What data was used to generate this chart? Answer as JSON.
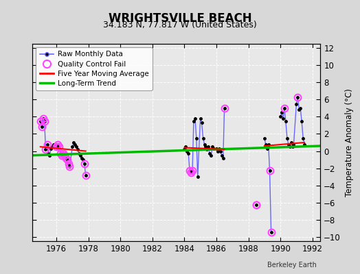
{
  "title": "WRIGHTSVILLE BEACH",
  "subtitle": "34.183 N, 77.817 W (United States)",
  "ylabel": "Temperature Anomaly (°C)",
  "credit": "Berkeley Earth",
  "xlim": [
    1974.5,
    1992.5
  ],
  "ylim": [
    -10.5,
    12.5
  ],
  "yticks": [
    -10,
    -8,
    -6,
    -4,
    -2,
    0,
    2,
    4,
    6,
    8,
    10,
    12
  ],
  "xticks": [
    1976,
    1978,
    1980,
    1982,
    1984,
    1986,
    1988,
    1990,
    1992
  ],
  "bg_color": "#d8d8d8",
  "plot_bg": "#e8e8e8",
  "raw_data": [
    [
      1975.0,
      3.5
    ],
    [
      1975.08,
      2.8
    ],
    [
      1975.17,
      3.8
    ],
    [
      1975.25,
      3.5
    ],
    [
      1975.33,
      0.2
    ],
    [
      1975.42,
      0.8
    ],
    [
      1975.5,
      -0.3
    ],
    [
      1975.58,
      -0.5
    ],
    [
      1975.67,
      0.3
    ],
    [
      1975.75,
      0.5
    ],
    [
      1975.83,
      0.8
    ],
    [
      1976.0,
      0.5
    ],
    [
      1976.08,
      0.8
    ],
    [
      1976.17,
      0.5
    ],
    [
      1976.25,
      -0.3
    ],
    [
      1976.33,
      -0.5
    ],
    [
      1976.42,
      -0.3
    ],
    [
      1976.5,
      -0.5
    ],
    [
      1976.58,
      -0.8
    ],
    [
      1976.67,
      -1.0
    ],
    [
      1976.75,
      -1.5
    ],
    [
      1976.83,
      -1.8
    ],
    [
      1977.0,
      0.5
    ],
    [
      1977.08,
      1.0
    ],
    [
      1977.17,
      0.8
    ],
    [
      1977.25,
      0.5
    ],
    [
      1977.33,
      0.2
    ],
    [
      1977.42,
      -0.3
    ],
    [
      1977.5,
      -0.5
    ],
    [
      1977.58,
      -0.8
    ],
    [
      1977.67,
      -1.0
    ],
    [
      1977.75,
      -1.5
    ],
    [
      1977.83,
      -2.8
    ],
    [
      1984.0,
      0.2
    ],
    [
      1984.08,
      0.5
    ],
    [
      1984.17,
      0.0
    ],
    [
      1984.25,
      -0.3
    ],
    [
      1984.33,
      -2.3
    ],
    [
      1984.42,
      -2.5
    ],
    [
      1984.5,
      -2.3
    ],
    [
      1984.58,
      3.5
    ],
    [
      1984.67,
      3.8
    ],
    [
      1984.75,
      1.5
    ],
    [
      1984.83,
      -3.0
    ],
    [
      1985.0,
      3.8
    ],
    [
      1985.08,
      3.3
    ],
    [
      1985.17,
      1.5
    ],
    [
      1985.25,
      0.8
    ],
    [
      1985.33,
      0.5
    ],
    [
      1985.42,
      0.2
    ],
    [
      1985.5,
      0.5
    ],
    [
      1985.58,
      -0.3
    ],
    [
      1985.67,
      -0.5
    ],
    [
      1985.75,
      0.5
    ],
    [
      1985.83,
      0.3
    ],
    [
      1986.0,
      0.3
    ],
    [
      1986.08,
      0.0
    ],
    [
      1986.17,
      0.3
    ],
    [
      1986.25,
      0.0
    ],
    [
      1986.33,
      -0.5
    ],
    [
      1986.42,
      -0.8
    ],
    [
      1986.5,
      5.0
    ],
    [
      1989.0,
      1.5
    ],
    [
      1989.08,
      0.8
    ],
    [
      1989.17,
      0.3
    ],
    [
      1989.25,
      0.8
    ],
    [
      1989.33,
      -2.3
    ],
    [
      1989.42,
      -9.5
    ],
    [
      1990.0,
      4.0
    ],
    [
      1990.08,
      4.5
    ],
    [
      1990.17,
      3.8
    ],
    [
      1990.25,
      5.0
    ],
    [
      1990.33,
      3.5
    ],
    [
      1990.42,
      1.5
    ],
    [
      1990.5,
      0.8
    ],
    [
      1990.58,
      0.5
    ],
    [
      1990.67,
      1.0
    ],
    [
      1990.75,
      0.5
    ],
    [
      1990.83,
      0.8
    ],
    [
      1991.0,
      5.5
    ],
    [
      1991.08,
      6.3
    ],
    [
      1991.17,
      4.8
    ],
    [
      1991.25,
      5.0
    ],
    [
      1991.33,
      3.5
    ],
    [
      1991.42,
      1.5
    ],
    [
      1991.5,
      0.8
    ]
  ],
  "qc_fail_x": [
    1975.0,
    1975.08,
    1975.17,
    1975.25,
    1975.33,
    1975.42,
    1976.0,
    1976.08,
    1976.17,
    1976.25,
    1976.33,
    1976.42,
    1976.5,
    1976.58,
    1976.67,
    1976.75,
    1976.83,
    1977.75,
    1977.83,
    1984.33,
    1984.42,
    1984.5,
    1986.5,
    1988.5,
    1989.33,
    1989.42,
    1990.25,
    1991.08
  ],
  "qc_fail_y": [
    3.5,
    2.8,
    3.8,
    3.5,
    0.2,
    0.8,
    0.5,
    0.8,
    0.5,
    -0.3,
    -0.5,
    -0.3,
    -0.5,
    -0.8,
    -1.0,
    -1.5,
    -1.8,
    -1.5,
    -2.8,
    -2.3,
    -2.5,
    -2.3,
    5.0,
    -6.3,
    -2.3,
    -9.5,
    5.0,
    6.3
  ],
  "standalone_qc_x": [
    1988.5
  ],
  "standalone_qc_y": [
    -6.3
  ],
  "moving_avg_segments": [
    [
      [
        1975.0,
        1977.83
      ],
      [
        0.5,
        0.0
      ]
    ],
    [
      [
        1984.0,
        1986.5
      ],
      [
        0.4,
        0.2
      ]
    ],
    [
      [
        1989.0,
        1991.5
      ],
      [
        0.6,
        1.0
      ]
    ]
  ],
  "trend_x": [
    1974.5,
    1992.5
  ],
  "trend_y": [
    -0.5,
    0.6
  ],
  "line_color": "#6666ff",
  "dot_color": "#000000",
  "qc_color": "#ff44ff",
  "ma_color": "#ff0000",
  "trend_color": "#00bb00",
  "grid_color": "#ffffff",
  "title_fontsize": 12,
  "subtitle_fontsize": 9,
  "tick_fontsize": 8.5
}
